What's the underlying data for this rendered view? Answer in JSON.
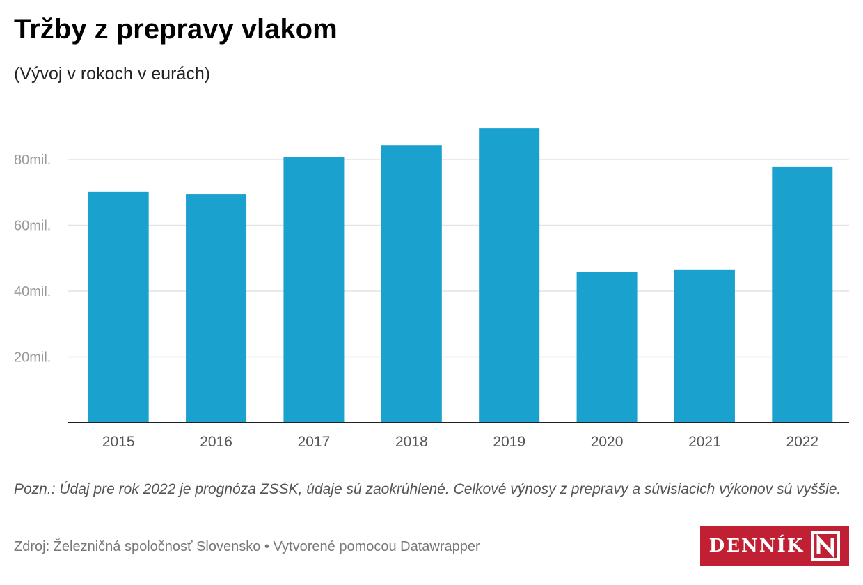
{
  "header": {
    "title": "Tržby z prepravy vlakom",
    "subtitle": "(Vývoj v rokoch v eurách)"
  },
  "chart_data": {
    "type": "bar",
    "title": "Tržby z prepravy vlakom",
    "subtitle": "(Vývoj v rokoch v eurách)",
    "xlabel": "",
    "ylabel": "",
    "categories": [
      "2015",
      "2016",
      "2017",
      "2018",
      "2019",
      "2020",
      "2021",
      "2022"
    ],
    "values": [
      70.3,
      69.4,
      80.8,
      84.4,
      89.5,
      45.9,
      46.6,
      77.7
    ],
    "unit": "mil. €",
    "ylim": [
      0,
      95
    ],
    "yticks": [
      20,
      40,
      60,
      80
    ],
    "ytick_labels": [
      "20mil.",
      "40mil.",
      "60mil.",
      "80mil."
    ],
    "grid": true,
    "bar_color": "#1aa1ce"
  },
  "footer": {
    "note": "Pozn.: Údaj pre rok 2022 je prognóza ZSSK, údaje sú zaokrúhlené. Celkové výnosy z prepravy a súvisiacich výkonov sú vyššie.",
    "source": "Zdroj: Železničná spoločnosť Slovensko • Vytvorené pomocou Datawrapper",
    "logo_text": "DENNÍK N",
    "logo_color": "#c01f34"
  }
}
